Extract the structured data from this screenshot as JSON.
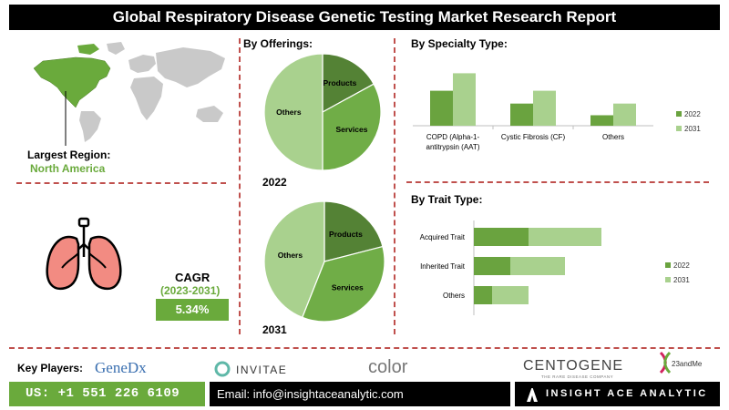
{
  "title": "Global Respiratory Disease Genetic Testing Market Research Report",
  "region": {
    "label": "Largest Region:",
    "value": "North America"
  },
  "cagr": {
    "label": "CAGR",
    "years": "(2023-2031)",
    "value": "5.34%"
  },
  "offerings": {
    "heading": "By  Offerings:"
  },
  "specialty": {
    "heading": "By Specialty Type:"
  },
  "trait": {
    "heading": "By Trait Type:"
  },
  "key_players": {
    "label": "Key Players:",
    "logos": [
      "GeneDx",
      "INVITAE",
      "color",
      "CENTOGENE",
      "THE RARE DISEASE COMPANY",
      "23andMe"
    ]
  },
  "footer": {
    "phone": "US: +1 551 226 6109",
    "email": "Email: info@insightaceanalytic.com",
    "brand": "INSIGHT ACE ANALYTIC"
  },
  "colors": {
    "dark_green": "#6aa33f",
    "light_green": "#a9d18e",
    "pie_dark": "#548235",
    "pie_mid": "#70ad47",
    "pie_light": "#a9d18e",
    "accent": "#c0504d"
  },
  "chart_data": [
    {
      "type": "pie",
      "title": "2022",
      "labels": [
        "Products",
        "Services",
        "Others"
      ],
      "values": [
        17,
        33,
        50
      ]
    },
    {
      "type": "pie",
      "title": "2031",
      "labels": [
        "Products",
        "Services",
        "Others"
      ],
      "values": [
        21,
        35,
        44
      ]
    },
    {
      "type": "bar",
      "title": "By Specialty Type:",
      "categories": [
        "COPD (Alpha-1-antitrypsin (AAT)",
        "Cystic Fibrosis (CF)",
        "Others"
      ],
      "series": [
        {
          "name": "2022",
          "values": [
            60,
            38,
            18
          ]
        },
        {
          "name": "2031",
          "values": [
            90,
            60,
            38
          ]
        }
      ],
      "legend": "right"
    },
    {
      "type": "bar",
      "orientation": "horizontal",
      "stacked": true,
      "title": "By Trait Type:",
      "categories": [
        "Acquired Trait",
        "Inherited Trait",
        "Others"
      ],
      "series": [
        {
          "name": "2022",
          "values": [
            30,
            20,
            10
          ]
        },
        {
          "name": "2031",
          "values": [
            40,
            30,
            20
          ]
        }
      ],
      "legend": "right"
    }
  ]
}
